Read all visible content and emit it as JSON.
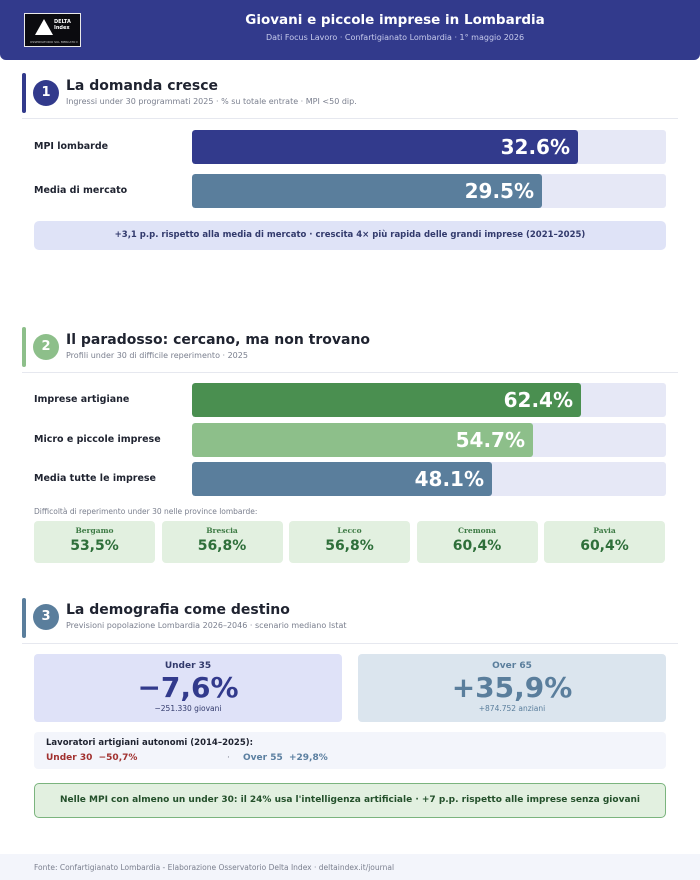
{
  "header": {
    "title": "Giovani e piccole imprese in Lombardia",
    "subtitle": "Dati Focus Lavoro · Confartigianato Lombardia · 1° maggio 2026",
    "logo_text": "DELTA Index",
    "logo_tagline": "OSSERVATORIO SUL MERCATO DEL LAVORO",
    "accent": "#323a8c"
  },
  "section1": {
    "number": "1",
    "title": "La domanda cresce",
    "subtitle": "Ingressi under 30 programmati 2025 · % su totale entrate · MPI <50 dip.",
    "note": "+3,1 p.p. rispetto alla media di mercato · crescita 4× più rapida delle grandi imprese (2021–2025)"
  },
  "section2": {
    "number": "2",
    "title": "Il paradosso: cercano, ma non trovano",
    "subtitle": "Profili under 30 di difficile reperimento · 2025",
    "provinces_title": "Difficoltà di reperimento under 30 nelle province lombarde:",
    "provinces": [
      {
        "name": "Bergamo",
        "value": "53,5%"
      },
      {
        "name": "Brescia",
        "value": "56,8%"
      },
      {
        "name": "Lecco",
        "value": "56,8%"
      },
      {
        "name": "Cremona",
        "value": "60,4%"
      },
      {
        "name": "Pavia",
        "value": "60,4%"
      }
    ]
  },
  "section3": {
    "number": "3",
    "title": "La demografia come destino",
    "subtitle": "Previsioni popolazione Lombardia 2026–2046 · scenario mediano Istat",
    "under35": {
      "label": "Under 35",
      "value": "−7,6%",
      "sub": "−251.330 giovani"
    },
    "over65": {
      "label": "Over 65",
      "value": "+35,9%",
      "sub": "+874.752 anziani"
    },
    "artisans": {
      "title": "Lavoratori artigiani autonomi (2014–2025):",
      "under30": "Under 30  −50,7%",
      "separator": "·",
      "over55": "Over 55  +29,8%"
    },
    "ai_note": "Nelle MPI con almeno un under 30: il 24% usa l'intelligenza artificiale · +7 p.p. rispetto alle imprese senza giovani"
  },
  "footer": {
    "source": "Fonte: Confartigianato Lombardia - Elaborazione Osservatorio Delta Index · deltaindex.it/journal"
  },
  "chart_data": [
    {
      "type": "bar",
      "orientation": "horizontal",
      "title": "La domanda cresce",
      "categories": [
        "MPI lombarde",
        "Media di mercato"
      ],
      "values": [
        32.6,
        29.5
      ],
      "labels": [
        "32.6%",
        "29.5%"
      ],
      "colors": [
        "#323a8c",
        "#5a7e9c"
      ],
      "xlim": [
        0,
        40
      ]
    },
    {
      "type": "bar",
      "orientation": "horizontal",
      "title": "Il paradosso: cercano, ma non trovano",
      "categories": [
        "Imprese artigiane",
        "Micro e piccole imprese",
        "Media tutte le imprese"
      ],
      "values": [
        62.4,
        54.7,
        48.1
      ],
      "labels": [
        "62.4%",
        "54.7%",
        "48.1%"
      ],
      "colors": [
        "#4a8f50",
        "#8dbf8a",
        "#5a7e9c"
      ],
      "xlim": [
        0,
        76
      ]
    }
  ]
}
